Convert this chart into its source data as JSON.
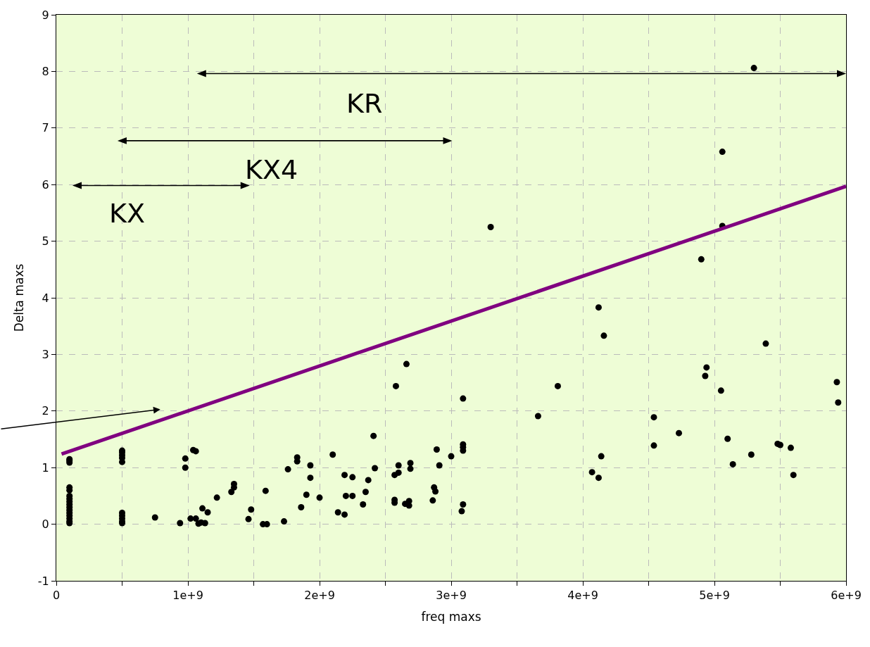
{
  "chart_data": {
    "type": "scatter",
    "xlabel": "freq maxs",
    "ylabel": "Delta maxs",
    "xlim": [
      0,
      6000000000.0
    ],
    "ylim": [
      -1,
      9
    ],
    "xticks": [
      0,
      {
        "value": 500000000.0,
        "label": null
      },
      {
        "value": 1000000000.0,
        "label": "1e+9"
      },
      {
        "value": 1500000000.0,
        "label": null
      },
      {
        "value": 2000000000.0,
        "label": "2e+9"
      },
      {
        "value": 2500000000.0,
        "label": null
      },
      {
        "value": 3000000000.0,
        "label": "3e+9"
      },
      {
        "value": 3500000000.0,
        "label": null
      },
      {
        "value": 4000000000.0,
        "label": "4e+9"
      },
      {
        "value": 4500000000.0,
        "label": null
      },
      {
        "value": 5000000000.0,
        "label": "5e+9"
      },
      {
        "value": 5500000000.0,
        "label": null
      },
      {
        "value": 6000000000.0,
        "label": "6e+9"
      }
    ],
    "yticks": [
      -1,
      0,
      1,
      2,
      3,
      4,
      5,
      6,
      7,
      8,
      9
    ],
    "grid": true,
    "marker": "circle",
    "series": [
      {
        "color": "#000000",
        "x": [
          100000000.0,
          100000000.0,
          100000000.0,
          100000000.0,
          100000000.0,
          100000000.0,
          100000000.0,
          100000000.0,
          100000000.0,
          100000000.0,
          100000000.0,
          100000000.0,
          100000000.0,
          100000000.0,
          100000000.0,
          100000000.0,
          500000000.0,
          500000000.0,
          500000000.0,
          500000000.0,
          500000000.0,
          500000000.0,
          500000000.0,
          500000000.0,
          500000000.0,
          500000000.0,
          750000000.0,
          940000000.0,
          980000000.0,
          980000000.0,
          1040000000.0,
          1060000000.0,
          1020000000.0,
          1060000000.0,
          1080000000.0,
          1100000000.0,
          1130000000.0,
          1110000000.0,
          1150000000.0,
          1220000000.0,
          1330000000.0,
          1350000000.0,
          1350000000.0,
          1480000000.0,
          1460000000.0,
          1570000000.0,
          1600000000.0,
          1590000000.0,
          1730000000.0,
          1760000000.0,
          1830000000.0,
          1830000000.0,
          1930000000.0,
          1930000000.0,
          1900000000.0,
          1860000000.0,
          2000000000.0,
          2100000000.0,
          2140000000.0,
          2190000000.0,
          2190000000.0,
          2200000000.0,
          2250000000.0,
          2250000000.0,
          2330000000.0,
          2350000000.0,
          2370000000.0,
          2410000000.0,
          2420000000.0,
          2570000000.0,
          2570000000.0,
          2570000000.0,
          2580000000.0,
          2600000000.0,
          2600000000.0,
          2650000000.0,
          2660000000.0,
          2680000000.0,
          2680000000.0,
          2690000000.0,
          2690000000.0,
          2860000000.0,
          2870000000.0,
          2880000000.0,
          2890000000.0,
          2910000000.0,
          3000000000.0,
          3080000000.0,
          3090000000.0,
          3090000000.0,
          3090000000.0,
          3090000000.0,
          3090000000.0,
          3300000000.0,
          3660000000.0,
          3810000000.0,
          4070000000.0,
          4120000000.0,
          4120000000.0,
          4140000000.0,
          4160000000.0,
          4540000000.0,
          4540000000.0,
          4730000000.0,
          4900000000.0,
          4930000000.0,
          4940000000.0,
          5050000000.0,
          5060000000.0,
          5060000000.0,
          5100000000.0,
          5140000000.0,
          5280000000.0,
          5300000000.0,
          5390000000.0,
          5480000000.0,
          5500000000.0,
          5580000000.0,
          5600000000.0,
          5930000000.0,
          5940000000.0
        ],
        "values": [
          1.15,
          1.12,
          1.09,
          0.65,
          0.6,
          0.5,
          0.45,
          0.4,
          0.35,
          0.3,
          0.25,
          0.2,
          0.15,
          0.1,
          0.05,
          0.02,
          1.3,
          1.27,
          1.22,
          1.17,
          1.1,
          0.2,
          0.15,
          0.1,
          0.05,
          0.02,
          0.12,
          0.02,
          1.16,
          1.0,
          1.31,
          1.29,
          0.1,
          0.1,
          0.01,
          0.03,
          0.02,
          0.28,
          0.21,
          0.47,
          0.57,
          0.65,
          0.71,
          0.26,
          0.09,
          0.0,
          0.0,
          0.59,
          0.05,
          0.97,
          1.18,
          1.11,
          1.04,
          0.82,
          0.52,
          0.3,
          0.47,
          1.23,
          0.21,
          0.87,
          0.17,
          0.5,
          0.83,
          0.5,
          0.35,
          0.57,
          0.78,
          1.56,
          0.99,
          0.87,
          0.43,
          0.38,
          2.44,
          1.04,
          0.91,
          0.36,
          2.83,
          0.41,
          0.33,
          1.08,
          0.98,
          0.42,
          0.65,
          0.58,
          1.32,
          1.04,
          1.2,
          0.23,
          2.22,
          1.41,
          1.36,
          1.3,
          0.35,
          5.25,
          1.91,
          2.44,
          0.92,
          3.83,
          0.82,
          1.2,
          3.33,
          1.89,
          1.39,
          1.61,
          4.68,
          2.62,
          2.77,
          2.36,
          6.58,
          5.27,
          1.51,
          1.06,
          1.23,
          8.06,
          3.19,
          1.42,
          1.4,
          1.35,
          0.87,
          2.51,
          2.15
        ]
      },
      {
        "type": "line",
        "marker": "none",
        "color": "#800080",
        "x": [
          40000000.0,
          6000000000.0
        ],
        "values": [
          1.24,
          5.97
        ]
      }
    ],
    "annotations": [
      "KR",
      "KX4",
      "KX"
    ]
  }
}
